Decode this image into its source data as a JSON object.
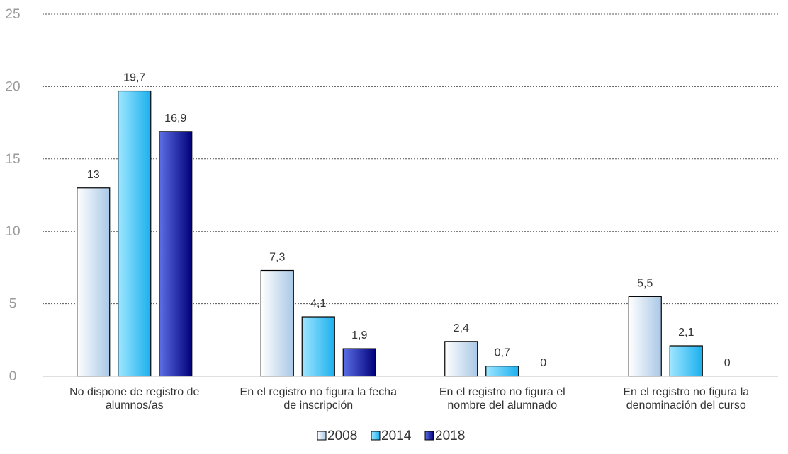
{
  "chart_data": {
    "type": "bar",
    "title": "",
    "xlabel": "",
    "ylabel": "",
    "ylim": [
      0,
      25
    ],
    "yticks": [
      0,
      5,
      10,
      15,
      20,
      25
    ],
    "grid": true,
    "legend_position": "bottom-center",
    "categories": [
      [
        "No dispone de registro de",
        "alumnos/as"
      ],
      [
        "En el registro no figura la fecha",
        "de inscripción"
      ],
      [
        "En el registro no figura el",
        "nombre del alumnado"
      ],
      [
        "En el registro no figura la",
        "denominación del curso"
      ]
    ],
    "series": [
      {
        "name": "2008",
        "values": [
          13,
          7.3,
          2.4,
          5.5
        ],
        "labels": [
          "13",
          "7,3",
          "2,4",
          "5,5"
        ],
        "color_start": "#ffffff",
        "color_end": "#a9c8e6"
      },
      {
        "name": "2014",
        "values": [
          19.7,
          4.1,
          0.7,
          2.1
        ],
        "labels": [
          "19,7",
          "4,1",
          "0,7",
          "2,1"
        ],
        "color_start": "#9fe6ff",
        "color_end": "#1bb0ee"
      },
      {
        "name": "2018",
        "values": [
          16.9,
          1.9,
          0,
          0
        ],
        "labels": [
          "16,9",
          "1,9",
          "0",
          "0"
        ],
        "color_start": "#5d6fe6",
        "color_end": "#00007a"
      }
    ]
  }
}
